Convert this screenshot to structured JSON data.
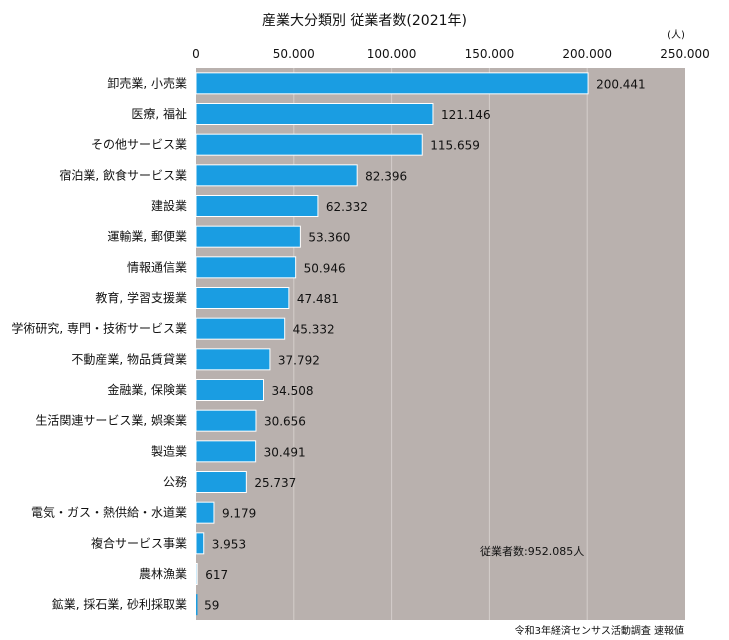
{
  "chart_data": {
    "type": "bar",
    "orientation": "horizontal",
    "title": "産業大分類別 従業者数(2021年)",
    "unit": "(人)",
    "categories": [
      "卸売業, 小売業",
      "医療, 福祉",
      "その他サービス業",
      "宿泊業, 飲食サービス業",
      "建設業",
      "運輸業, 郵便業",
      "情報通信業",
      "教育, 学習支援業",
      "学術研究, 専門・技術サービス業",
      "不動産業, 物品賃貸業",
      "金融業, 保険業",
      "生活関連サービス業, 娯楽業",
      "製造業",
      "公務",
      "電気・ガス・熱供給・水道業",
      "複合サービス事業",
      "農林漁業",
      "鉱業, 採石業, 砂利採取業"
    ],
    "values": [
      200441,
      121146,
      115659,
      82396,
      62332,
      53360,
      50946,
      47481,
      45332,
      37792,
      34508,
      30656,
      30491,
      25737,
      9179,
      3953,
      617,
      59
    ],
    "value_labels": [
      "200.441",
      "121.146",
      "115.659",
      "82.396",
      "62.332",
      "53.360",
      "50.946",
      "47.481",
      "45.332",
      "37.792",
      "34.508",
      "30.656",
      "30.491",
      "25.737",
      "9.179",
      "3.953",
      "617",
      "59"
    ],
    "xlim": [
      0,
      250000
    ],
    "ticks": [
      0,
      50000,
      100000,
      150000,
      200000,
      250000
    ],
    "tick_labels": [
      "0",
      "50.000",
      "100.000",
      "150.000",
      "200.000",
      "250.000"
    ],
    "total_annotation": "従業者数:952.085人",
    "source": "令和3年経済センサス活動調査 速報値",
    "grid": true,
    "colors": {
      "bar": "#1a9de2",
      "plot_bg": "#b9b1ae",
      "gridline": "#d4cecb",
      "bar_border": "#ffffff"
    }
  }
}
